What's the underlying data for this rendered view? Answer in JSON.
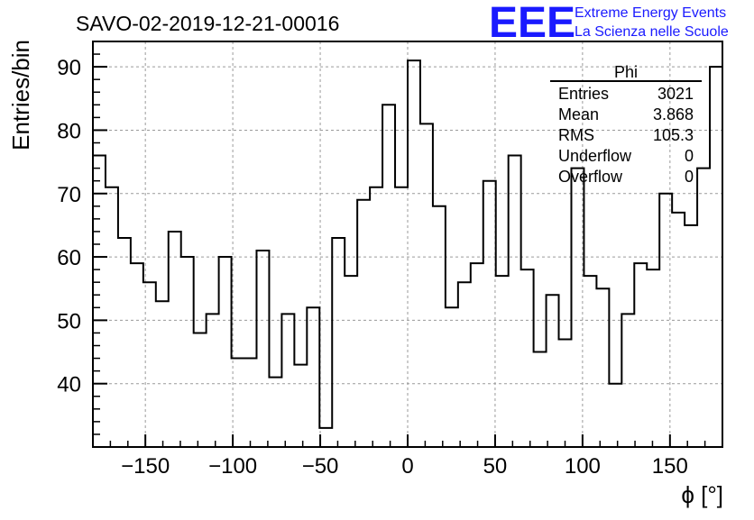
{
  "chart_data": {
    "type": "histogram-step",
    "title": "SAVO-02-2019-12-21-00016",
    "logo": {
      "mark": "EEE",
      "line1": "Extreme Energy Events",
      "line2": "La Scienza nelle Scuole",
      "color": "#1a1aff"
    },
    "xlabel": "ϕ [°]",
    "ylabel": "Entries/bin",
    "xlim": [
      -180,
      180
    ],
    "ylim": [
      30,
      94
    ],
    "xticks": [
      -150,
      -100,
      -50,
      0,
      50,
      100,
      150
    ],
    "xtick_labels": [
      "−150",
      "−100",
      "−50",
      "0",
      "50",
      "100",
      "150"
    ],
    "yticks": [
      40,
      50,
      60,
      70,
      80,
      90
    ],
    "ytick_labels": [
      "40",
      "50",
      "60",
      "70",
      "80",
      "90"
    ],
    "grid": true,
    "bin_width": 7.2,
    "bin_edges_start": -180,
    "values": [
      76,
      71,
      63,
      59,
      56,
      53,
      64,
      60,
      48,
      51,
      60,
      44,
      44,
      61,
      41,
      51,
      43,
      52,
      33,
      63,
      57,
      69,
      71,
      84,
      71,
      91,
      81,
      68,
      52,
      56,
      59,
      72,
      57,
      76,
      58,
      45,
      54,
      47,
      74,
      57,
      55,
      40,
      51,
      59,
      58,
      70,
      67,
      65,
      74,
      90
    ],
    "line_color": "#000000",
    "stats_box": {
      "title": "Phi",
      "rows": [
        {
          "label": "Entries",
          "value": "3021"
        },
        {
          "label": "Mean",
          "value": "3.868"
        },
        {
          "label": "RMS",
          "value": "105.3"
        },
        {
          "label": "Underflow",
          "value": "0"
        },
        {
          "label": "Overflow",
          "value": "0"
        }
      ]
    }
  }
}
